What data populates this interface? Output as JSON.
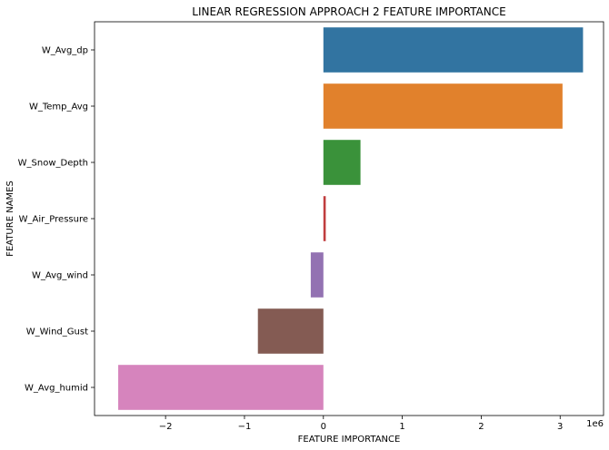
{
  "chart_data": {
    "type": "bar",
    "orientation": "horizontal",
    "title": "LINEAR REGRESSION APPROACH 2 FEATURE IMPORTANCE",
    "xlabel": "FEATURE IMPORTANCE",
    "ylabel": "FEATURE NAMES",
    "x_scale_label": "1e6",
    "xlim": [
      -2.9,
      3.55
    ],
    "x_ticks": [
      {
        "value": -2,
        "label": "−2"
      },
      {
        "value": -1,
        "label": "−1"
      },
      {
        "value": 0,
        "label": "0"
      },
      {
        "value": 1,
        "label": "1"
      },
      {
        "value": 2,
        "label": "2"
      },
      {
        "value": 3,
        "label": "3"
      }
    ],
    "grid": false,
    "legend": "none",
    "categories": [
      "W_Avg_dp",
      "W_Temp_Avg",
      "W_Snow_Depth",
      "W_Air_Pressure",
      "W_Avg_wind",
      "W_Wind_Gust",
      "W_Avg_humid"
    ],
    "values": [
      3.29,
      3.03,
      0.47,
      0.03,
      -0.16,
      -0.83,
      -2.6
    ],
    "colors": [
      "#3274a1",
      "#e1812c",
      "#3a923a",
      "#c03d3e",
      "#9372b2",
      "#845b53",
      "#d684bd"
    ]
  }
}
